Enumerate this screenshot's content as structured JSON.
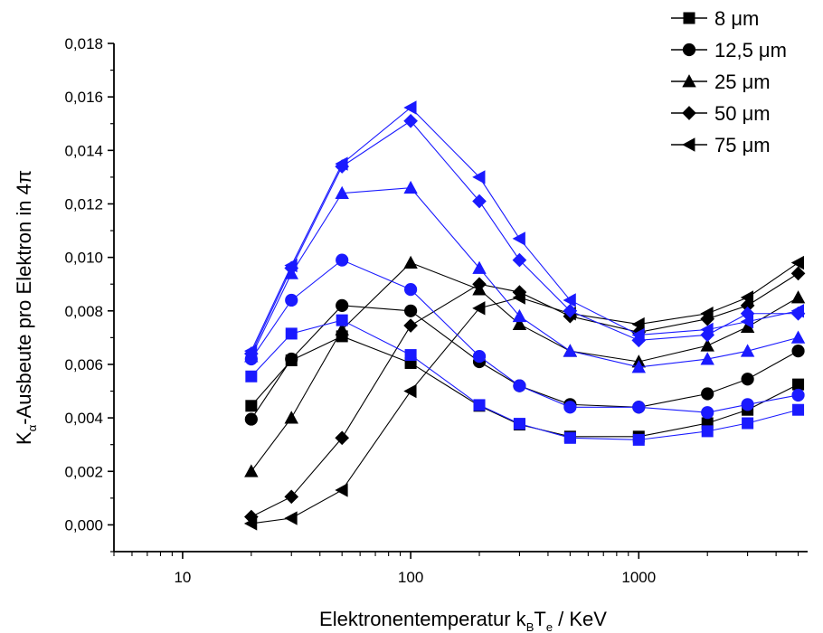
{
  "chart_data": {
    "type": "line",
    "title": "",
    "xlabel_parts": {
      "main": "Elektronentemperatur k",
      "sub1": "B",
      "mid": "T",
      "sub2": "e",
      "tail": " / KeV"
    },
    "ylabel_parts": {
      "main": "K",
      "sub": "α",
      "tail": "-Ausbeute pro Elektron in 4π"
    },
    "x_scale": "log",
    "xlim": [
      5,
      5500
    ],
    "ylim": [
      -0.001,
      0.018
    ],
    "x_ticks": [
      10,
      100,
      1000
    ],
    "x_tick_labels": [
      "10",
      "100",
      "1000"
    ],
    "y_ticks": [
      0.0,
      0.002,
      0.004,
      0.006,
      0.008,
      0.01,
      0.012,
      0.014,
      0.016,
      0.018
    ],
    "y_tick_labels": [
      "0,000",
      "0,002",
      "0,004",
      "0,006",
      "0,008",
      "0,010",
      "0,012",
      "0,014",
      "0,016",
      "0,018"
    ],
    "grid": false,
    "legend_position": "top-right",
    "x": [
      20,
      30,
      50,
      100,
      200,
      300,
      500,
      1000,
      2000,
      3000,
      5000
    ],
    "legend": [
      {
        "label": "8 μm",
        "marker": "square"
      },
      {
        "label": "12,5 μm",
        "marker": "circle"
      },
      {
        "label": "25 μm",
        "marker": "triangle-up"
      },
      {
        "label": "50 μm",
        "marker": "diamond"
      },
      {
        "label": "75 μm",
        "marker": "triangle-left"
      }
    ],
    "series": [
      {
        "marker": "square",
        "color": "#000000",
        "values": [
          0.00445,
          0.00615,
          0.00705,
          0.00605,
          0.00445,
          0.00375,
          0.0033,
          0.0033,
          0.0038,
          0.0043,
          0.00525
        ]
      },
      {
        "marker": "circle",
        "color": "#000000",
        "values": [
          0.00395,
          0.0062,
          0.0082,
          0.008,
          0.0061,
          0.0052,
          0.0045,
          0.0044,
          0.0049,
          0.00545,
          0.0065
        ]
      },
      {
        "marker": "triangle-up",
        "color": "#000000",
        "values": [
          0.002,
          0.004,
          0.0073,
          0.0098,
          0.0088,
          0.0075,
          0.0065,
          0.0061,
          0.0067,
          0.0074,
          0.0085
        ]
      },
      {
        "marker": "diamond",
        "color": "#000000",
        "values": [
          0.0003,
          0.00105,
          0.00325,
          0.00745,
          0.009,
          0.0087,
          0.0078,
          0.0072,
          0.0077,
          0.0082,
          0.0094
        ]
      },
      {
        "marker": "triangle-left",
        "color": "#000000",
        "values": [
          5e-05,
          0.00025,
          0.0013,
          0.005,
          0.0081,
          0.0085,
          0.0079,
          0.0075,
          0.0079,
          0.0085,
          0.0098
        ]
      },
      {
        "marker": "square",
        "color": "#1a1aff",
        "values": [
          0.00555,
          0.00715,
          0.00765,
          0.00635,
          0.00448,
          0.00378,
          0.00325,
          0.00318,
          0.0035,
          0.0038,
          0.0043
        ]
      },
      {
        "marker": "circle",
        "color": "#1a1aff",
        "values": [
          0.0062,
          0.0084,
          0.0099,
          0.0088,
          0.0063,
          0.0052,
          0.0044,
          0.0044,
          0.0042,
          0.0045,
          0.00485
        ]
      },
      {
        "marker": "triangle-up",
        "color": "#1a1aff",
        "values": [
          0.0063,
          0.0094,
          0.0124,
          0.0126,
          0.0096,
          0.0078,
          0.0065,
          0.0059,
          0.0062,
          0.0065,
          0.007
        ]
      },
      {
        "marker": "diamond",
        "color": "#1a1aff",
        "values": [
          0.0064,
          0.0096,
          0.0134,
          0.0151,
          0.0121,
          0.0099,
          0.008,
          0.0069,
          0.0071,
          0.0079,
          0.0079
        ]
      },
      {
        "marker": "triangle-left",
        "color": "#1a1aff",
        "values": [
          0.0065,
          0.0097,
          0.0135,
          0.0156,
          0.013,
          0.0107,
          0.0084,
          0.0071,
          0.0073,
          0.0076,
          0.008
        ]
      }
    ]
  }
}
